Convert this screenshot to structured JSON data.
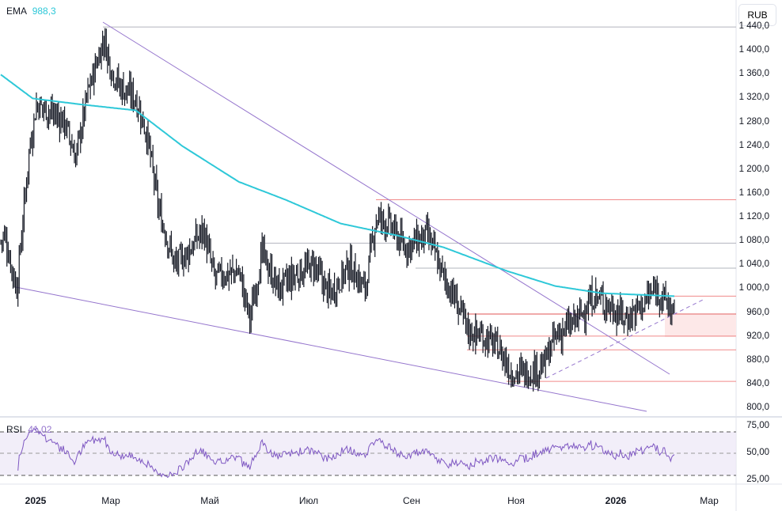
{
  "header": {
    "ema_label": "EMA",
    "ema_value": "988,3",
    "rsi_label": "RSI",
    "rsi_value": "41,02",
    "currency": "RUB"
  },
  "colors": {
    "ema": "#2ec8d8",
    "rsi": "#7e57c2",
    "trend": "#9575cd",
    "level_red": "#f08a8a",
    "level_gray": "#b2b5be",
    "candle": "#131722"
  },
  "chart_data": {
    "type": "ohlc",
    "y_ticks": [
      "1 440,0",
      "1 400,0",
      "1 360,0",
      "1 320,0",
      "1 280,0",
      "1 240,0",
      "1 200,0",
      "1 160,0",
      "1 120,0",
      "1 080,0",
      "1 040,0",
      "1 000,0",
      "960,0",
      "920,0",
      "880,0",
      "840,0",
      "800,0"
    ],
    "ylim": [
      800,
      1440
    ],
    "x_ticks": [
      "2025",
      "Мар",
      "Май",
      "Июл",
      "Сен",
      "Ноя",
      "2026",
      "Мар"
    ],
    "bars": 550,
    "close_keypoints": [
      [
        0,
        1080
      ],
      [
        3,
        1090
      ],
      [
        13,
        1000
      ],
      [
        23,
        1230
      ],
      [
        29,
        1310
      ],
      [
        39,
        1300
      ],
      [
        52,
        1280
      ],
      [
        61,
        1220
      ],
      [
        71,
        1330
      ],
      [
        84,
        1420
      ],
      [
        90,
        1370
      ],
      [
        97,
        1340
      ],
      [
        110,
        1320
      ],
      [
        119,
        1260
      ],
      [
        129,
        1130
      ],
      [
        142,
        1040
      ],
      [
        152,
        1060
      ],
      [
        165,
        1100
      ],
      [
        174,
        1020
      ],
      [
        194,
        1030
      ],
      [
        203,
        950
      ],
      [
        213,
        1060
      ],
      [
        226,
        1000
      ],
      [
        245,
        1030
      ],
      [
        255,
        1040
      ],
      [
        268,
        990
      ],
      [
        284,
        1040
      ],
      [
        297,
        1000
      ],
      [
        306,
        1120
      ],
      [
        316,
        1110
      ],
      [
        329,
        1070
      ],
      [
        348,
        1090
      ],
      [
        361,
        1020
      ],
      [
        371,
        980
      ],
      [
        381,
        930
      ],
      [
        394,
        920
      ],
      [
        406,
        900
      ],
      [
        416,
        860
      ],
      [
        429,
        860
      ],
      [
        442,
        870
      ],
      [
        452,
        920
      ],
      [
        465,
        940
      ],
      [
        474,
        960
      ],
      [
        484,
        990
      ],
      [
        497,
        970
      ],
      [
        510,
        950
      ],
      [
        523,
        975
      ],
      [
        534,
        1000
      ],
      [
        542,
        980
      ],
      [
        549,
        955
      ]
    ],
    "ema_keypoints": [
      [
        0,
        1360
      ],
      [
        26,
        1320
      ],
      [
        65,
        1310
      ],
      [
        110,
        1300
      ],
      [
        148,
        1240
      ],
      [
        194,
        1180
      ],
      [
        232,
        1150
      ],
      [
        277,
        1110
      ],
      [
        323,
        1090
      ],
      [
        361,
        1070
      ],
      [
        413,
        1030
      ],
      [
        452,
        1005
      ],
      [
        490,
        993
      ],
      [
        549,
        988
      ]
    ],
    "levels": {
      "red": [
        1150,
        988,
        958,
        921,
        898,
        845
      ],
      "gray": [
        1440,
        1077,
        1035
      ]
    },
    "rsi": {
      "ticks": [
        "75,00",
        "50,00",
        "25,00"
      ],
      "bands": [
        70,
        50,
        30
      ],
      "ylim": [
        25,
        75
      ],
      "period": 14
    }
  }
}
